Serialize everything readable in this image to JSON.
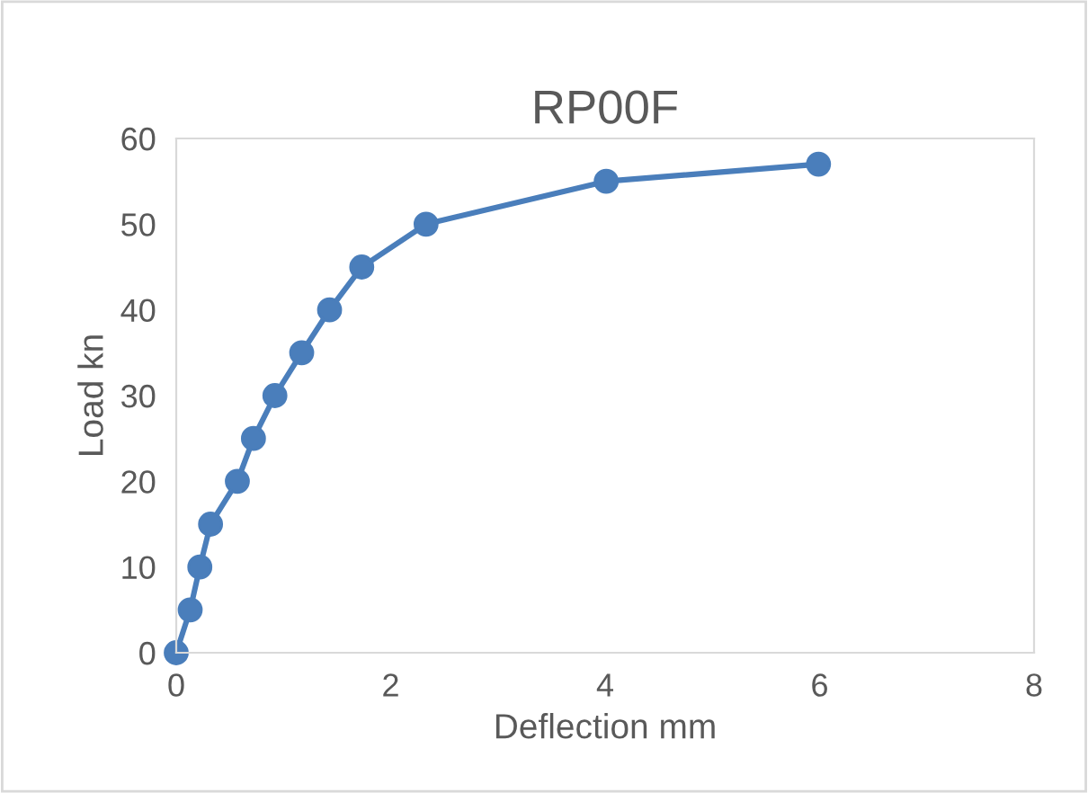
{
  "chart_data": {
    "type": "line",
    "title": "RP00F",
    "xlabel": "Deflection mm",
    "ylabel": "Load kn",
    "series": [
      {
        "color": "#4a7ebb",
        "x": [
          0,
          0.13,
          0.22,
          0.32,
          0.57,
          0.72,
          0.92,
          1.17,
          1.43,
          1.73,
          2.33,
          4.01,
          5.99
        ],
        "values": [
          0,
          5,
          10,
          15,
          20,
          25,
          30,
          35,
          40,
          45,
          50,
          55,
          57
        ]
      }
    ],
    "xlim": [
      0,
      8
    ],
    "xticks": [
      0,
      2,
      4,
      6,
      8
    ],
    "ylim": [
      0,
      60
    ],
    "yticks": [
      0,
      10,
      20,
      30,
      40,
      50,
      60
    ],
    "marker": "circle",
    "line_style": "solid",
    "grid": false,
    "legend": false
  }
}
